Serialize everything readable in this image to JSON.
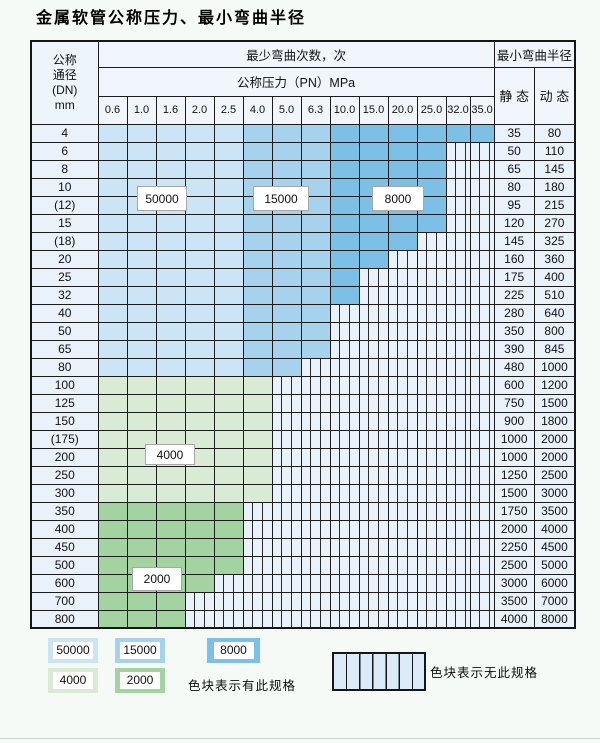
{
  "title": "金属软管公称压力、最小弯曲半径",
  "colors": {
    "c50000": "#cbe5f6",
    "c15000": "#a6d2ee",
    "c8000": "#7cc0e8",
    "c4000": "#d9ebd4",
    "c2000": "#a3d3a0"
  },
  "table": {
    "corner_lines": [
      "公称",
      "通径",
      "(DN)",
      "mm"
    ],
    "bend_cycles_header": "最少弯曲次数，次",
    "pressure_header": "公称压力（PN）MPa",
    "radius_header": "最小弯曲半径",
    "static_label": "静 态",
    "dynamic_label": "动 态",
    "pressure_columns": [
      "0.6",
      "1.0",
      "1.6",
      "2.0",
      "2.5",
      "4.0",
      "5.0",
      "6.3",
      "10.0",
      "15.0",
      "20.0",
      "25.0",
      "32.0",
      "35.0"
    ],
    "blue_zone_splits": [
      5,
      8
    ],
    "rows": [
      {
        "dn": "4",
        "band": "blue",
        "colored": 14,
        "static": "35",
        "dynamic": "80"
      },
      {
        "dn": "6",
        "band": "blue",
        "colored": 12,
        "static": "50",
        "dynamic": "110"
      },
      {
        "dn": "8",
        "band": "blue",
        "colored": 12,
        "static": "65",
        "dynamic": "145"
      },
      {
        "dn": "10",
        "band": "blue",
        "colored": 12,
        "static": "80",
        "dynamic": "180"
      },
      {
        "dn": "(12)",
        "band": "blue",
        "colored": 12,
        "static": "95",
        "dynamic": "215"
      },
      {
        "dn": "15",
        "band": "blue",
        "colored": 12,
        "static": "120",
        "dynamic": "270"
      },
      {
        "dn": "(18)",
        "band": "blue",
        "colored": 11,
        "static": "145",
        "dynamic": "325"
      },
      {
        "dn": "20",
        "band": "blue",
        "colored": 10,
        "static": "160",
        "dynamic": "360"
      },
      {
        "dn": "25",
        "band": "blue",
        "colored": 9,
        "static": "175",
        "dynamic": "400"
      },
      {
        "dn": "32",
        "band": "blue",
        "colored": 9,
        "static": "225",
        "dynamic": "510"
      },
      {
        "dn": "40",
        "band": "blue",
        "colored": 8,
        "static": "280",
        "dynamic": "640"
      },
      {
        "dn": "50",
        "band": "blue",
        "colored": 8,
        "static": "350",
        "dynamic": "800"
      },
      {
        "dn": "65",
        "band": "blue",
        "colored": 8,
        "static": "390",
        "dynamic": "845"
      },
      {
        "dn": "80",
        "band": "blue",
        "colored": 7,
        "static": "480",
        "dynamic": "1000"
      },
      {
        "dn": "100",
        "band": "4000",
        "colored": 6,
        "static": "600",
        "dynamic": "1200"
      },
      {
        "dn": "125",
        "band": "4000",
        "colored": 6,
        "static": "750",
        "dynamic": "1500"
      },
      {
        "dn": "150",
        "band": "4000",
        "colored": 6,
        "static": "900",
        "dynamic": "1800"
      },
      {
        "dn": "(175)",
        "band": "4000",
        "colored": 6,
        "static": "1000",
        "dynamic": "2000"
      },
      {
        "dn": "200",
        "band": "4000",
        "colored": 6,
        "static": "1000",
        "dynamic": "2000"
      },
      {
        "dn": "250",
        "band": "4000",
        "colored": 6,
        "static": "1250",
        "dynamic": "2500"
      },
      {
        "dn": "300",
        "band": "4000",
        "colored": 6,
        "static": "1500",
        "dynamic": "3000"
      },
      {
        "dn": "350",
        "band": "2000",
        "colored": 5,
        "static": "1750",
        "dynamic": "3500"
      },
      {
        "dn": "400",
        "band": "2000",
        "colored": 5,
        "static": "2000",
        "dynamic": "4000"
      },
      {
        "dn": "450",
        "band": "2000",
        "colored": 5,
        "static": "2250",
        "dynamic": "4500"
      },
      {
        "dn": "500",
        "band": "2000",
        "colored": 5,
        "static": "2500",
        "dynamic": "5000"
      },
      {
        "dn": "600",
        "band": "2000",
        "colored": 4,
        "static": "3000",
        "dynamic": "6000"
      },
      {
        "dn": "700",
        "band": "2000",
        "colored": 3,
        "static": "3500",
        "dynamic": "7000"
      },
      {
        "dn": "800",
        "band": "2000",
        "colored": 3,
        "static": "4000",
        "dynamic": "8000"
      }
    ]
  },
  "overlays": [
    {
      "key": "50000",
      "text": "50000"
    },
    {
      "key": "15000",
      "text": "15000"
    },
    {
      "key": "8000",
      "text": "8000"
    },
    {
      "key": "4000",
      "text": "4000"
    },
    {
      "key": "2000",
      "text": "2000"
    }
  ],
  "legend": {
    "items": [
      {
        "label": "50000",
        "color": "#cbe5f6"
      },
      {
        "label": "15000",
        "color": "#a6d2ee"
      },
      {
        "label": "8000",
        "color": "#7cc0e8"
      },
      {
        "label": "4000",
        "color": "#d9ebd4"
      },
      {
        "label": "2000",
        "color": "#a3d3a0"
      }
    ],
    "has_spec_note": "色块表示有此规格",
    "no_spec_note": "色块表示无此规格"
  }
}
